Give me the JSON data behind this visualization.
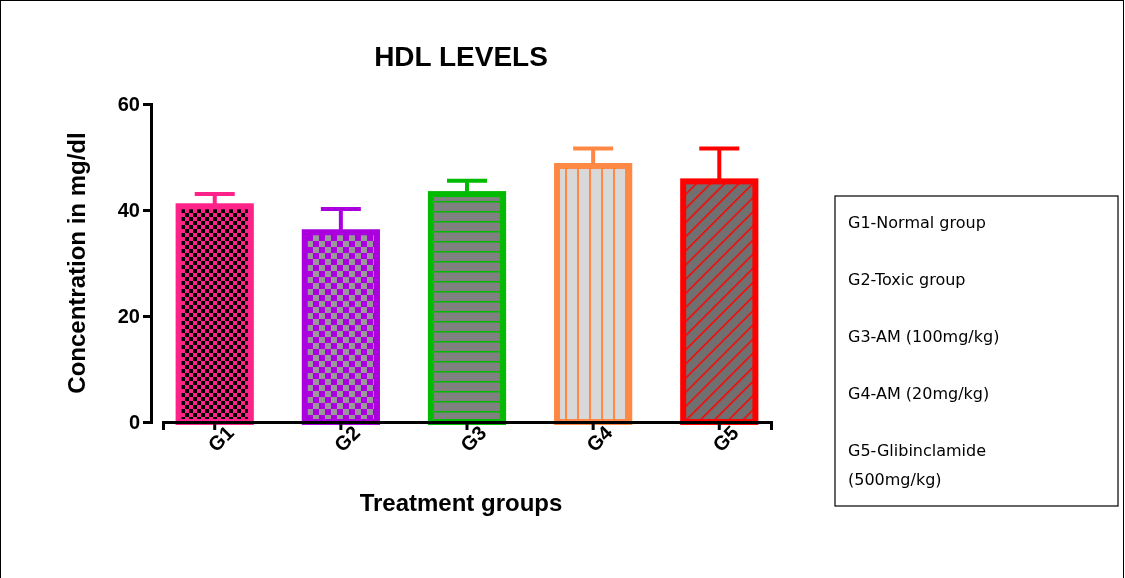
{
  "chart_data": {
    "type": "bar",
    "title": "HDL LEVELS",
    "xlabel": "Treatment groups",
    "ylabel": "Concentration in mg/dl",
    "categories": [
      "G1",
      "G2",
      "G3",
      "G4",
      "G5"
    ],
    "values": [
      40.7,
      35.8,
      43.0,
      48.3,
      45.4
    ],
    "errors": [
      [
        40.7,
        43.0
      ],
      [
        35.8,
        40.2
      ],
      [
        43.0,
        45.5
      ],
      [
        48.3,
        51.6
      ],
      [
        45.4,
        51.6
      ]
    ],
    "colors": [
      "#ff2288",
      "#aa00dd",
      "#00bb00",
      "#ff8844",
      "#ff0000"
    ],
    "ylim": [
      0,
      60
    ],
    "yticks": [
      0,
      20,
      40,
      60
    ],
    "annotations": [
      "G1-Normal group",
      "G2-Toxic group",
      "G3-AM (100mg/kg)",
      "G4-AM (20mg/kg)",
      "G5-Glibinclamide (500mg/kg)"
    ]
  }
}
